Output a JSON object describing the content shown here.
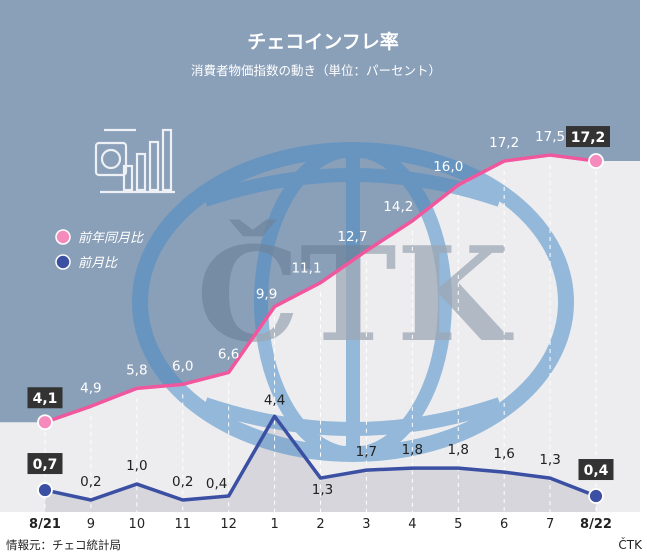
{
  "chart_data": {
    "type": "line",
    "title": "チェコインフレ率",
    "subtitle": "消費者物価指数の動き（単位：パーセント）",
    "categories": [
      "8/21",
      "9",
      "10",
      "11",
      "12",
      "1",
      "2",
      "3",
      "4",
      "5",
      "6",
      "7",
      "8/22"
    ],
    "series": [
      {
        "name": "前年同月比",
        "color": "#f0579d",
        "values": [
          4.1,
          4.9,
          5.8,
          6.0,
          6.6,
          9.9,
          11.1,
          12.7,
          14.2,
          16.0,
          17.2,
          17.5,
          17.2
        ],
        "labels": [
          "4,1",
          "4,9",
          "5,8",
          "6,0",
          "6,6",
          "9,9",
          "11,1",
          "12,7",
          "14,2",
          "16,0",
          "17,2",
          "17,5",
          "17,2"
        ]
      },
      {
        "name": "前月比",
        "color": "#3b4fa3",
        "values": [
          0.7,
          0.2,
          1.0,
          0.2,
          0.4,
          4.4,
          1.3,
          1.7,
          1.8,
          1.8,
          1.6,
          1.3,
          0.4
        ],
        "labels": [
          "0,7",
          "0,2",
          "1,0",
          "0,2",
          "0,4",
          "4,4",
          "1,3",
          "1,7",
          "1,8",
          "1,8",
          "1,6",
          "1,3",
          "0,4"
        ]
      }
    ],
    "legend_position": "left",
    "grid": "vertical dashed",
    "colors": {
      "header_background": "#8a9fb8",
      "area_fill": "#e8e8ec",
      "box_label": "#333333",
      "watermark_globe": "#3f84c2"
    }
  },
  "source": "情報元：チェコ統計局",
  "brand": "ČTK",
  "watermark": "ČTK",
  "icon": "money-chart-icon"
}
